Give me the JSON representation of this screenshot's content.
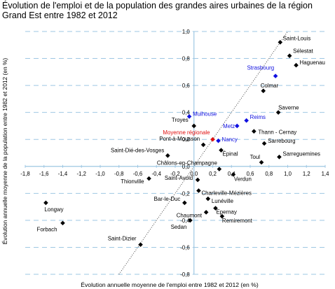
{
  "title": "Évolution de l'emploi et de la population des grandes aires urbaines de la région",
  "subtitle": "Grand Est entre 1982 et 2012",
  "chart_data": {
    "type": "scatter",
    "title": "Évolution de l'emploi et de la population des grandes aires urbaines de la région",
    "subtitle": "Grand Est entre 1982 et 2012",
    "xlabel": "Évolution annuelle moyenne de l'emploi entre 1982 et 2012 (en %)",
    "ylabel": "Évolution annuelle moyenne de la population entre 1982 et 2012 (en %)",
    "xlim": [
      -1.8,
      1.4
    ],
    "ylim": [
      -0.8,
      1.0
    ],
    "x_ticks": [
      "-1,8",
      "-1,6",
      "-1,4",
      "-1,2",
      "-1,0",
      "-0,8",
      "-0,6",
      "-0,4",
      "-0,2",
      "0,0",
      "0,2",
      "0,4",
      "0,6",
      "0,8",
      "1,0",
      "1,2",
      "1,4"
    ],
    "x_tick_values": [
      -1.8,
      -1.6,
      -1.4,
      -1.2,
      -1.0,
      -0.8,
      -0.6,
      -0.4,
      -0.2,
      0.0,
      0.2,
      0.4,
      0.6,
      0.8,
      1.0,
      1.2,
      1.4
    ],
    "y_ticks": [
      "1,0",
      "0,8",
      "0,6",
      "0,4",
      "0,2",
      "0,0",
      "-0,2",
      "-0,4",
      "-0,6",
      "-0,8"
    ],
    "y_tick_values": [
      1.0,
      0.8,
      0.6,
      0.4,
      0.2,
      0.0,
      -0.2,
      -0.4,
      -0.6,
      -0.8
    ],
    "grid": "horizontal dashed",
    "diagonal_line": "dotted y = x",
    "colors": {
      "default": "#000000",
      "highlight": "#1010e0",
      "regional": "#e01010",
      "grid": "#9ec7e3",
      "axis": "#9ec7e3"
    },
    "points": [
      {
        "label": "Saint-Louis",
        "x": 0.92,
        "y": 0.92,
        "color": "default"
      },
      {
        "label": "Sélestat",
        "x": 1.02,
        "y": 0.82,
        "color": "default"
      },
      {
        "label": "Haguenau",
        "x": 1.09,
        "y": 0.75,
        "color": "default"
      },
      {
        "label": "Strasbourg",
        "x": 0.87,
        "y": 0.67,
        "color": "highlight"
      },
      {
        "label": "Colmar",
        "x": 0.74,
        "y": 0.56,
        "color": "default"
      },
      {
        "label": "Saverne",
        "x": 0.9,
        "y": 0.4,
        "color": "default"
      },
      {
        "label": "Mulhouse",
        "x": -0.05,
        "y": 0.37,
        "color": "highlight"
      },
      {
        "label": "Reims",
        "x": 0.56,
        "y": 0.34,
        "color": "highlight"
      },
      {
        "label": "Troyes",
        "x": 0.0,
        "y": 0.3,
        "color": "default"
      },
      {
        "label": "Metz",
        "x": 0.46,
        "y": 0.3,
        "color": "highlight"
      },
      {
        "label": "Thann - Cernay",
        "x": 0.64,
        "y": 0.26,
        "color": "default"
      },
      {
        "label": "Moyenne régionale",
        "x": 0.2,
        "y": 0.2,
        "color": "regional"
      },
      {
        "label": "Nancy",
        "x": 0.26,
        "y": 0.19,
        "color": "highlight"
      },
      {
        "label": "Sarrebourg",
        "x": 0.75,
        "y": 0.17,
        "color": "default"
      },
      {
        "label": "Pont-à-Mousson",
        "x": 0.1,
        "y": 0.16,
        "color": "default"
      },
      {
        "label": "Épinal",
        "x": 0.29,
        "y": 0.12,
        "color": "default"
      },
      {
        "label": "Saint-Dié-des-Vosges",
        "x": -0.28,
        "y": 0.08,
        "color": "default"
      },
      {
        "label": "Sarreguemines",
        "x": 0.91,
        "y": 0.07,
        "color": "default"
      },
      {
        "label": "Toul",
        "x": 0.72,
        "y": 0.03,
        "color": "default"
      },
      {
        "label": "Châlons-en-Champagne",
        "x": 0.27,
        "y": -0.02,
        "color": "default"
      },
      {
        "label": "Verdun",
        "x": 0.42,
        "y": -0.06,
        "color": "default"
      },
      {
        "label": "Saint-Avold",
        "x": 0.04,
        "y": -0.1,
        "color": "default"
      },
      {
        "label": "Thionville",
        "x": -0.48,
        "y": -0.09,
        "color": "default"
      },
      {
        "label": "Charleville-Mézières",
        "x": 0.05,
        "y": -0.18,
        "color": "default"
      },
      {
        "label": "Lunéville",
        "x": 0.15,
        "y": -0.24,
        "color": "default"
      },
      {
        "label": "Bar-le-Duc",
        "x": -0.1,
        "y": -0.27,
        "color": "default"
      },
      {
        "label": "Longwy",
        "x": -1.58,
        "y": -0.27,
        "color": "default"
      },
      {
        "label": "Epernay",
        "x": 0.23,
        "y": -0.31,
        "color": "default"
      },
      {
        "label": "Chaumont",
        "x": 0.13,
        "y": -0.34,
        "color": "default"
      },
      {
        "label": "Remiremont",
        "x": 0.3,
        "y": -0.37,
        "color": "default"
      },
      {
        "label": "Sedan",
        "x": -0.04,
        "y": -0.4,
        "color": "default"
      },
      {
        "label": "Forbach",
        "x": -1.4,
        "y": -0.42,
        "color": "default"
      },
      {
        "label": "Saint-Dizier",
        "x": -0.57,
        "y": -0.58,
        "color": "default"
      }
    ]
  }
}
